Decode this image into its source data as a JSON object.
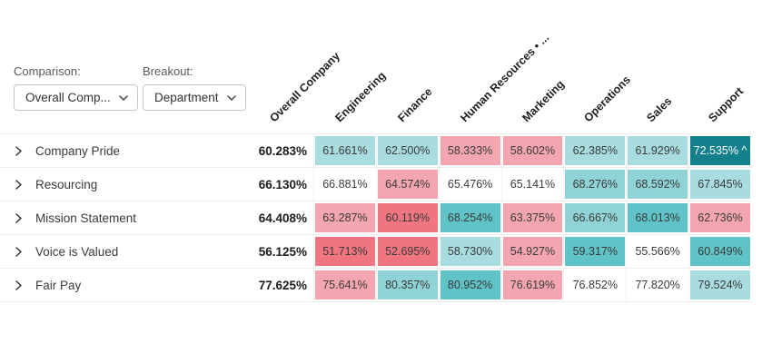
{
  "controls": {
    "comparison_label": "Comparison:",
    "comparison_value": "Overall Comp...",
    "breakout_label": "Breakout:",
    "breakout_value": "Department"
  },
  "columns": [
    "Overall Company",
    "Engineering",
    "Finance",
    "Human Resources • ...",
    "Marketing",
    "Operations",
    "Sales",
    "Support"
  ],
  "palette": {
    "t1": "#A9DCDF",
    "t2": "#8FD3D6",
    "t3": "#5FC3C7",
    "t4": "#13808C",
    "p1": "#F3A6B0",
    "r1": "#EF7680",
    "w": "transparent"
  },
  "cell_text_color": "#3A3A3A",
  "dark_cell_text_color": "#FFFFFF",
  "rows": [
    {
      "label": "Company Pride",
      "overall": "60.283%",
      "cells": [
        {
          "v": "61.661%",
          "c": "t1"
        },
        {
          "v": "62.500%",
          "c": "t1"
        },
        {
          "v": "58.333%",
          "c": "p1"
        },
        {
          "v": "58.602%",
          "c": "p1"
        },
        {
          "v": "62.385%",
          "c": "t1"
        },
        {
          "v": "61.929%",
          "c": "t1"
        },
        {
          "v": "72.535% ^",
          "c": "t4"
        }
      ]
    },
    {
      "label": "Resourcing",
      "overall": "66.130%",
      "cells": [
        {
          "v": "66.881%",
          "c": "w"
        },
        {
          "v": "64.574%",
          "c": "p1"
        },
        {
          "v": "65.476%",
          "c": "w"
        },
        {
          "v": "65.141%",
          "c": "w"
        },
        {
          "v": "68.276%",
          "c": "t2"
        },
        {
          "v": "68.592%",
          "c": "t2"
        },
        {
          "v": "67.845%",
          "c": "t1"
        }
      ]
    },
    {
      "label": "Mission Statement",
      "overall": "64.408%",
      "cells": [
        {
          "v": "63.287%",
          "c": "p1"
        },
        {
          "v": "60.119%",
          "c": "r1"
        },
        {
          "v": "68.254%",
          "c": "t3"
        },
        {
          "v": "63.375%",
          "c": "p1"
        },
        {
          "v": "66.667%",
          "c": "t2"
        },
        {
          "v": "68.013%",
          "c": "t3"
        },
        {
          "v": "62.736%",
          "c": "p1"
        }
      ]
    },
    {
      "label": "Voice is Valued",
      "overall": "56.125%",
      "cells": [
        {
          "v": "51.713%",
          "c": "r1"
        },
        {
          "v": "52.695%",
          "c": "r1"
        },
        {
          "v": "58.730%",
          "c": "t1"
        },
        {
          "v": "54.927%",
          "c": "p1"
        },
        {
          "v": "59.317%",
          "c": "t3"
        },
        {
          "v": "55.566%",
          "c": "w"
        },
        {
          "v": "60.849%",
          "c": "t3"
        }
      ]
    },
    {
      "label": "Fair Pay",
      "overall": "77.625%",
      "cells": [
        {
          "v": "75.641%",
          "c": "p1"
        },
        {
          "v": "80.357%",
          "c": "t2"
        },
        {
          "v": "80.952%",
          "c": "t3"
        },
        {
          "v": "76.619%",
          "c": "p1"
        },
        {
          "v": "76.852%",
          "c": "w"
        },
        {
          "v": "77.820%",
          "c": "w"
        },
        {
          "v": "79.524%",
          "c": "t1"
        }
      ]
    }
  ]
}
